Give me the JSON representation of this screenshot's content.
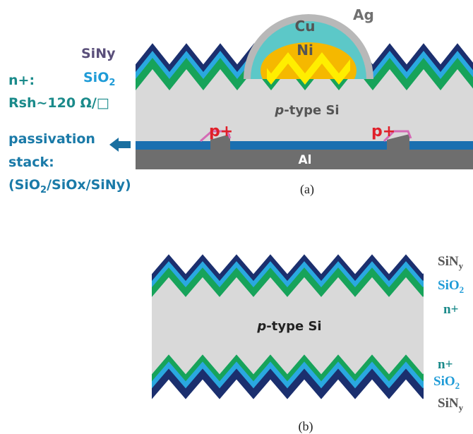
{
  "panel_a": {
    "metal": {
      "ag": "Ag",
      "cu": "Cu",
      "ni": "Ni"
    },
    "left_labels": {
      "siny": "SiNy",
      "sio2": {
        "base": "SiO",
        "sub": "2"
      },
      "n_plus": "n+:",
      "rsh": "Rsh~120 Ω/□"
    },
    "passivation": {
      "line1": "passivation",
      "line2": "stack:",
      "line3": {
        "p1": "(SiO",
        "sub1": "2",
        "p2": "/SiOx/SiNy)"
      }
    },
    "bulk": {
      "italic": "p",
      "rest": "-type Si"
    },
    "p_plus": [
      "p+",
      "p+"
    ],
    "al": "Al",
    "caption": "(a)"
  },
  "panel_b": {
    "bulk": {
      "italic": "p",
      "rest": "-type Si"
    },
    "top_labels": {
      "siny": {
        "base": "SiN",
        "sub": "y"
      },
      "sio2": {
        "base": "SiO",
        "sub": "2"
      },
      "n_plus": "n+"
    },
    "bottom_labels": {
      "n_plus": "n+",
      "sio2": {
        "base": "SiO",
        "sub": "2"
      },
      "siny": {
        "base": "SiN",
        "sub": "y"
      }
    },
    "caption": "(b)"
  }
}
